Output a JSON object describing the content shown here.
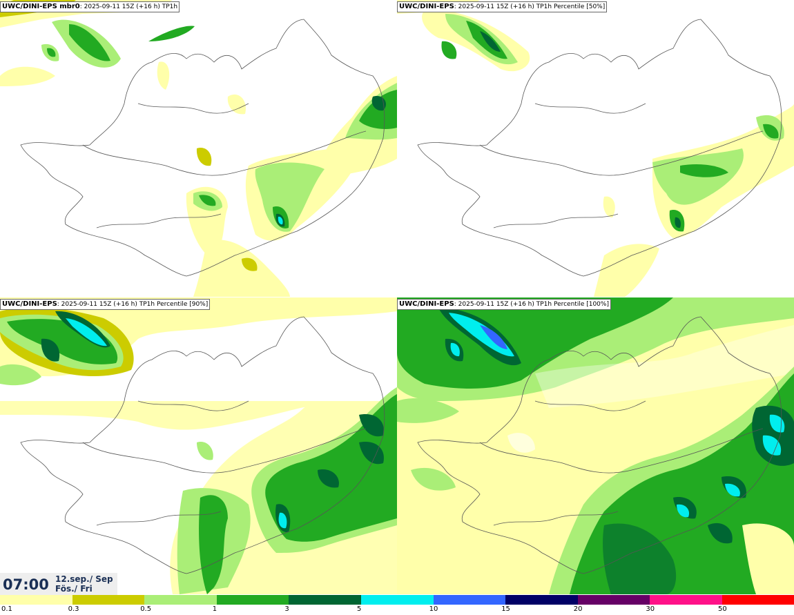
{
  "panels": [
    {
      "bold": "UWC/DINI-EPS mbr0",
      "rest": ": 2025-09-11 15Z (+16 h) TP1h"
    },
    {
      "bold": "UWC/DINI-EPS",
      "rest": ": 2025-09-11 15Z (+16 h) TP1h Percentile [50%]"
    },
    {
      "bold": "UWC/DINI-EPS",
      "rest": ": 2025-09-11 15Z (+16 h) TP1h Percentile [90%]"
    },
    {
      "bold": "UWC/DINI-EPS",
      "rest": ": 2025-09-11 15Z (+16 h) TP1h Percentile [100%]"
    }
  ],
  "valid_time": {
    "time": "07:00",
    "date": "12.sep./ Sep",
    "day": "Fös./ Fri"
  },
  "legend": {
    "levels": [
      "0.1",
      "0.3",
      "0.5",
      "1",
      "3",
      "5",
      "10",
      "15",
      "20",
      "30",
      "50"
    ],
    "colors": [
      "#ffffaa",
      "#cccc00",
      "#aaee77",
      "#22aa22",
      "#006633",
      "#00eeee",
      "#3366ff",
      "#000066",
      "#660066",
      "#ff1188",
      "#ff0000"
    ]
  },
  "colors": {
    "light_yellow": "#ffffaa",
    "olive": "#cccc00",
    "light_green": "#aaee77",
    "green": "#22aa22",
    "dark_green": "#006633",
    "cyan": "#00eeee",
    "blue": "#3366ff",
    "coast": "#555555"
  }
}
